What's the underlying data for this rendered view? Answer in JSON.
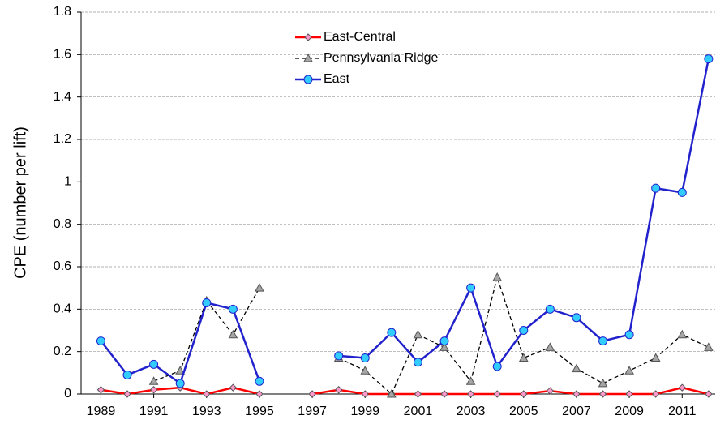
{
  "chart_data": {
    "type": "line",
    "y_label": "CPE (number per lift)",
    "x": [
      1989,
      1990,
      1991,
      1992,
      1993,
      1994,
      1995,
      1996,
      1997,
      1998,
      1999,
      2000,
      2001,
      2002,
      2003,
      2004,
      2005,
      2006,
      2007,
      2008,
      2009,
      2010,
      2011,
      2012
    ],
    "xlim": [
      1988.25,
      2012.25
    ],
    "xticks": [
      1989,
      1991,
      1993,
      1995,
      1997,
      1999,
      2001,
      2003,
      2005,
      2007,
      2009,
      2011
    ],
    "ylim": [
      0,
      1.8
    ],
    "yticks": [
      0,
      0.2,
      0.4,
      0.6,
      0.8,
      1,
      1.2,
      1.4,
      1.6,
      1.8
    ],
    "grid": true,
    "legend": "top-center",
    "series": [
      {
        "name": "East-Central",
        "color": "#ff0000",
        "marker": "diamond",
        "marker_color": "#ff99cc",
        "dash": false,
        "values": [
          0.02,
          0,
          0.02,
          0.03,
          0,
          0.03,
          0,
          null,
          0,
          0.02,
          0,
          0,
          0,
          0,
          0,
          0,
          0,
          0.015,
          0,
          0,
          0,
          0,
          0.03,
          0
        ]
      },
      {
        "name": "Pennsylvania Ridge",
        "color": "#000000",
        "marker": "triangle",
        "marker_color": "#a6a6a6",
        "dash": true,
        "values": [
          null,
          null,
          0.06,
          0.11,
          0.44,
          0.28,
          0.5,
          null,
          null,
          0.17,
          0.11,
          0,
          0.28,
          0.22,
          0.06,
          0.55,
          0.17,
          0.22,
          0.12,
          0.05,
          0.11,
          0.17,
          0.28,
          0.22
        ]
      },
      {
        "name": "East",
        "color": "#2222cc",
        "marker": "circle",
        "marker_color": "#33ccff",
        "dash": false,
        "values": [
          0.25,
          0.09,
          0.14,
          0.05,
          0.43,
          0.4,
          0.06,
          null,
          null,
          0.18,
          0.17,
          0.29,
          0.15,
          0.25,
          0.5,
          0.13,
          0.3,
          0.4,
          0.36,
          0.25,
          0.28,
          0.97,
          0.95,
          1.58
        ]
      }
    ]
  }
}
